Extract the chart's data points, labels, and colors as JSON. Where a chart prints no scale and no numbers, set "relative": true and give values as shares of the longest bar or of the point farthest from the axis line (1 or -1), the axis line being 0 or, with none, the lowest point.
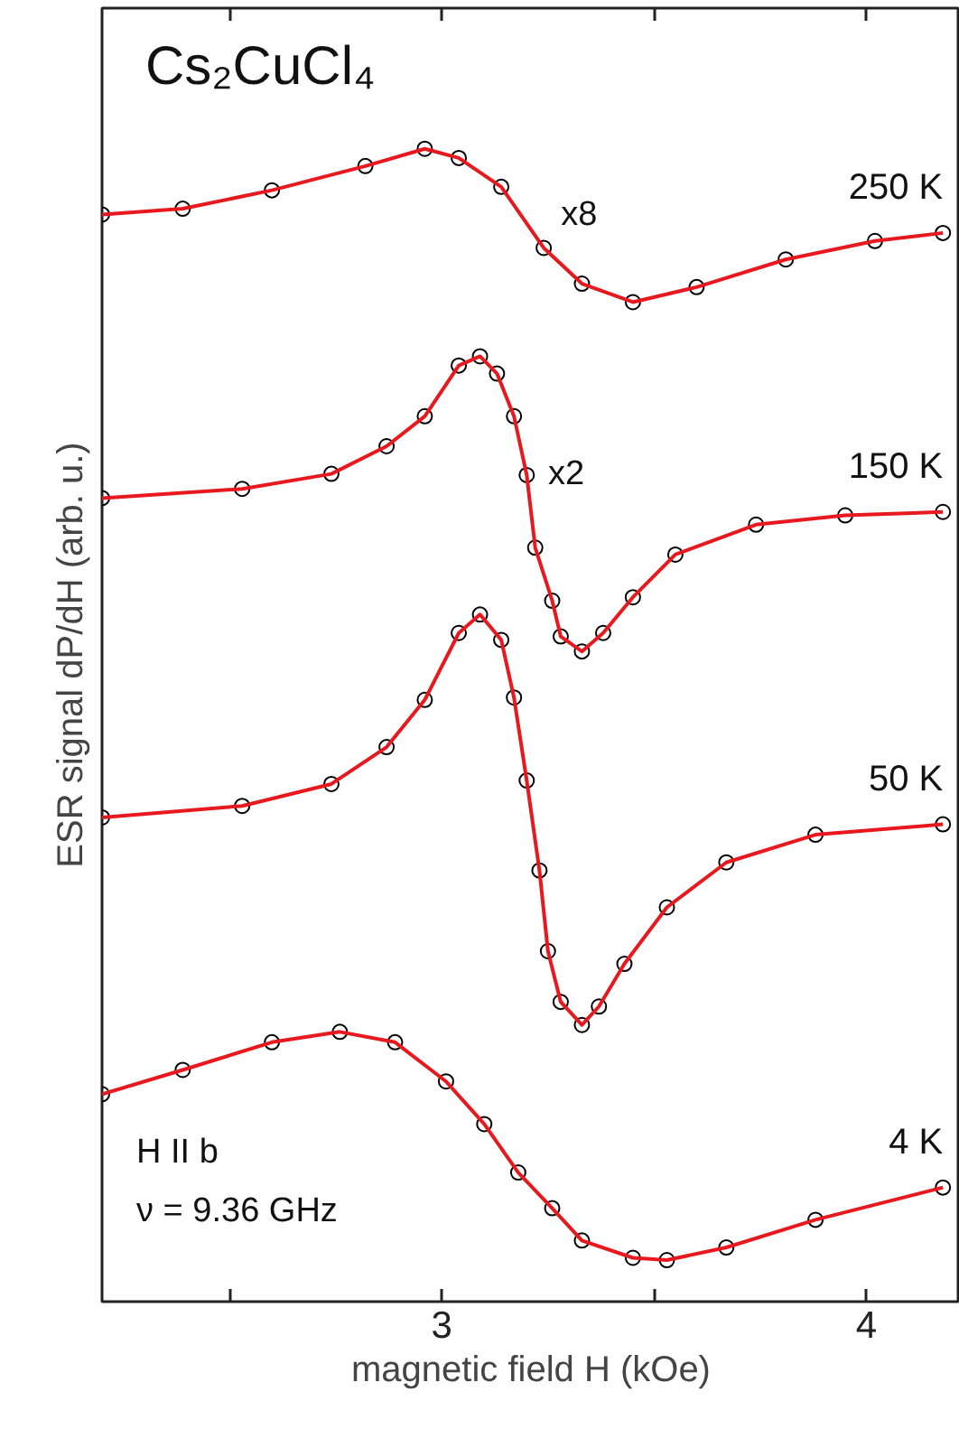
{
  "chart_data": {
    "type": "line",
    "title": "Cs₂CuCl₄",
    "xlabel": "magnetic field H (kOe)",
    "ylabel": "ESR signal dP/dH (arb. u.)",
    "relative": true,
    "xlim": [
      2.2,
      4.22
    ],
    "xticks": [
      {
        "value": 2.5,
        "label": null
      },
      3,
      {
        "value": 3.5,
        "label": null
      },
      4
    ],
    "grid": false,
    "annotations": [
      "x8",
      "x2",
      "H II b",
      "ν = 9.36 GHz"
    ],
    "series": [
      {
        "type": "scatter",
        "marker": "circle",
        "color": "#000000",
        "x": [
          2.2,
          2.39,
          2.6,
          2.82,
          2.96,
          3.04,
          3.14,
          3.24,
          3.33,
          3.45,
          3.6,
          3.81,
          4.02,
          4.18
        ],
        "values": [
          0.943,
          0.948,
          0.964,
          0.985,
          1,
          0.992,
          0.967,
          0.914,
          0.883,
          0.867,
          0.88,
          0.904,
          0.92,
          0.927
        ]
      },
      {
        "name": "250 K",
        "color": "#e8191e",
        "x": [
          2.2,
          2.39,
          2.6,
          2.82,
          2.96,
          3.04,
          3.14,
          3.24,
          3.33,
          3.45,
          3.6,
          3.81,
          4.02,
          4.18
        ],
        "values": [
          0.943,
          0.948,
          0.964,
          0.985,
          1,
          0.992,
          0.967,
          0.914,
          0.883,
          0.867,
          0.88,
          0.904,
          0.92,
          0.927
        ]
      },
      {
        "type": "scatter",
        "marker": "circle",
        "color": "#000000",
        "x": [
          2.2,
          2.53,
          2.74,
          2.87,
          2.96,
          3.04,
          3.09,
          3.13,
          3.17,
          3.2,
          3.22,
          3.26,
          3.28,
          3.33,
          3.38,
          3.45,
          3.55,
          3.74,
          3.95,
          4.18
        ],
        "values": [
          0.697,
          0.705,
          0.718,
          0.742,
          0.768,
          0.812,
          0.82,
          0.805,
          0.768,
          0.717,
          0.654,
          0.608,
          0.577,
          0.564,
          0.58,
          0.611,
          0.648,
          0.674,
          0.682,
          0.685
        ]
      },
      {
        "name": "150 K",
        "color": "#e8191e",
        "x": [
          2.2,
          2.53,
          2.74,
          2.87,
          2.96,
          3.04,
          3.09,
          3.13,
          3.17,
          3.2,
          3.22,
          3.26,
          3.28,
          3.33,
          3.38,
          3.45,
          3.55,
          3.74,
          3.95,
          4.18
        ],
        "values": [
          0.697,
          0.705,
          0.718,
          0.742,
          0.768,
          0.812,
          0.82,
          0.805,
          0.768,
          0.717,
          0.654,
          0.608,
          0.577,
          0.564,
          0.58,
          0.611,
          0.648,
          0.674,
          0.682,
          0.685
        ]
      },
      {
        "type": "scatter",
        "marker": "circle",
        "color": "#000000",
        "x": [
          2.2,
          2.53,
          2.74,
          2.87,
          2.96,
          3.04,
          3.09,
          3.14,
          3.17,
          3.2,
          3.23,
          3.25,
          3.28,
          3.33,
          3.37,
          3.43,
          3.53,
          3.67,
          3.88,
          4.18
        ],
        "values": [
          0.42,
          0.43,
          0.449,
          0.481,
          0.522,
          0.58,
          0.596,
          0.574,
          0.524,
          0.452,
          0.374,
          0.304,
          0.26,
          0.24,
          0.256,
          0.293,
          0.342,
          0.381,
          0.405,
          0.414
        ]
      },
      {
        "name": "50 K",
        "color": "#e8191e",
        "x": [
          2.2,
          2.53,
          2.74,
          2.87,
          2.96,
          3.04,
          3.09,
          3.14,
          3.17,
          3.2,
          3.23,
          3.25,
          3.28,
          3.33,
          3.37,
          3.43,
          3.53,
          3.67,
          3.88,
          4.18
        ],
        "values": [
          0.42,
          0.43,
          0.449,
          0.481,
          0.522,
          0.58,
          0.596,
          0.574,
          0.524,
          0.452,
          0.374,
          0.304,
          0.26,
          0.24,
          0.256,
          0.293,
          0.342,
          0.381,
          0.405,
          0.414
        ]
      },
      {
        "type": "scatter",
        "marker": "circle",
        "color": "#000000",
        "x": [
          2.2,
          2.39,
          2.6,
          2.76,
          2.89,
          3.01,
          3.1,
          3.18,
          3.26,
          3.33,
          3.45,
          3.53,
          3.67,
          3.88,
          4.18
        ],
        "values": [
          0.18,
          0.201,
          0.225,
          0.234,
          0.225,
          0.191,
          0.154,
          0.112,
          0.081,
          0.053,
          0.038,
          0.036,
          0.047,
          0.071,
          0.099
        ]
      },
      {
        "name": "4 K",
        "color": "#e8191e",
        "x": [
          2.2,
          2.39,
          2.6,
          2.76,
          2.89,
          3.01,
          3.1,
          3.18,
          3.26,
          3.33,
          3.45,
          3.53,
          3.67,
          3.88,
          4.18
        ],
        "values": [
          0.18,
          0.201,
          0.225,
          0.234,
          0.225,
          0.191,
          0.154,
          0.112,
          0.081,
          0.053,
          0.038,
          0.036,
          0.047,
          0.071,
          0.099
        ]
      }
    ]
  }
}
